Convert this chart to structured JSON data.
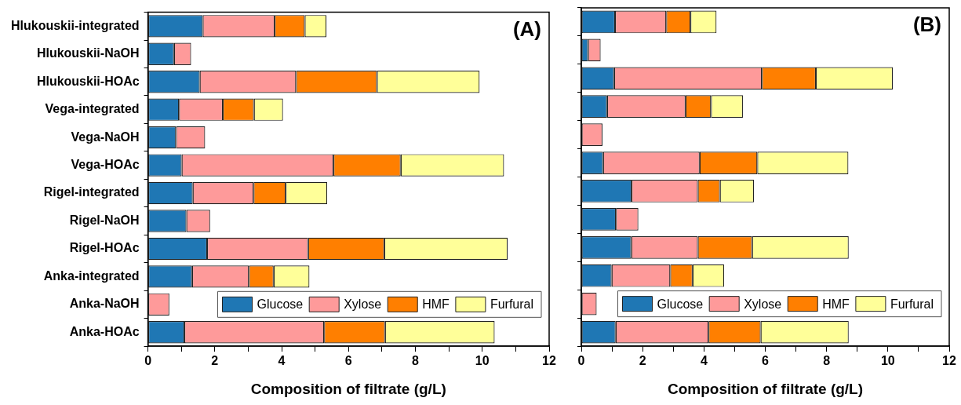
{
  "chart_data": [
    {
      "type": "bar",
      "orientation": "horizontal",
      "stacked": true,
      "annotations": [
        "(A)"
      ],
      "xlabel": "Composition of filtrate (g/L)",
      "legend": "bottom right",
      "categories": [
        "Hlukouskii-integrated",
        "Hlukouskii-NaOH",
        "Hlukouskii-HOAc",
        "Vega-integrated",
        "Vega-NaOH",
        "Vega-HOAc",
        "Rigel-integrated",
        "Rigel-NaOH",
        "Rigel-HOAc",
        "Anka-integrated",
        "Anka-NaOH",
        "Anka-HOAc"
      ],
      "series": [
        {
          "name": "Glucose",
          "color": "#1f77b4",
          "values": [
            1.64,
            0.78,
            1.55,
            0.93,
            0.84,
            1.01,
            1.34,
            1.15,
            1.77,
            1.32,
            null,
            1.09
          ]
        },
        {
          "name": "Xylose",
          "color": "#fe9a9a",
          "values": [
            2.15,
            0.51,
            2.88,
            1.31,
            0.87,
            4.54,
            1.82,
            0.71,
            3.02,
            1.7,
            0.64,
            4.18
          ]
        },
        {
          "name": "HMF",
          "color": "#ff7f00",
          "values": [
            0.9,
            null,
            2.42,
            0.93,
            null,
            2.01,
            0.96,
            null,
            2.28,
            0.74,
            null,
            1.82
          ]
        },
        {
          "name": "Furfural",
          "color": "#ffff99",
          "values": [
            0.65,
            null,
            3.07,
            0.87,
            null,
            3.09,
            1.24,
            null,
            3.69,
            1.07,
            null,
            3.28
          ]
        }
      ],
      "xlim": [
        0,
        12
      ],
      "xticks": [
        0,
        {
          "value": 1,
          "label": null
        },
        2,
        {
          "value": 3,
          "label": null
        },
        4,
        {
          "value": 5,
          "label": null
        },
        6,
        {
          "value": 7,
          "label": null
        },
        8,
        {
          "value": 9,
          "label": null
        },
        10,
        {
          "value": 11,
          "label": null
        },
        12
      ],
      "grid": false
    },
    {
      "type": "bar",
      "orientation": "horizontal",
      "stacked": true,
      "annotations": [
        "(B)"
      ],
      "xlabel": "Composition of filtrate (g/L)",
      "legend": "bottom right",
      "tick_labels": "x",
      "categories": [
        null,
        null,
        null,
        null,
        null,
        null,
        null,
        null,
        null,
        null,
        null,
        null
      ],
      "series": [
        {
          "name": "Glucose",
          "color": "#1f77b4",
          "values": [
            1.1,
            0.22,
            1.07,
            0.84,
            null,
            0.71,
            1.64,
            1.13,
            1.63,
            0.99,
            null,
            1.12
          ]
        },
        {
          "name": "Xylose",
          "color": "#fe9a9a",
          "values": [
            1.67,
            0.41,
            4.82,
            2.56,
            0.69,
            3.15,
            2.16,
            0.73,
            2.17,
            1.91,
            0.5,
            3.03
          ]
        },
        {
          "name": "HMF",
          "color": "#ff7f00",
          "values": [
            0.79,
            null,
            1.76,
            0.83,
            null,
            1.88,
            0.72,
            null,
            1.77,
            0.73,
            null,
            1.7
          ]
        },
        {
          "name": "Furfural",
          "color": "#ffff99",
          "values": [
            0.85,
            null,
            2.51,
            1.04,
            null,
            2.97,
            1.11,
            null,
            3.15,
            1.03,
            null,
            2.87
          ]
        }
      ],
      "xlim": [
        0,
        12
      ],
      "xticks": [
        0,
        {
          "value": 1,
          "label": null
        },
        2,
        {
          "value": 3,
          "label": null
        },
        4,
        {
          "value": 5,
          "label": null
        },
        6,
        {
          "value": 7,
          "label": null
        },
        8,
        {
          "value": 9,
          "label": null
        },
        10,
        {
          "value": 11,
          "label": null
        },
        12
      ],
      "grid": false
    }
  ]
}
